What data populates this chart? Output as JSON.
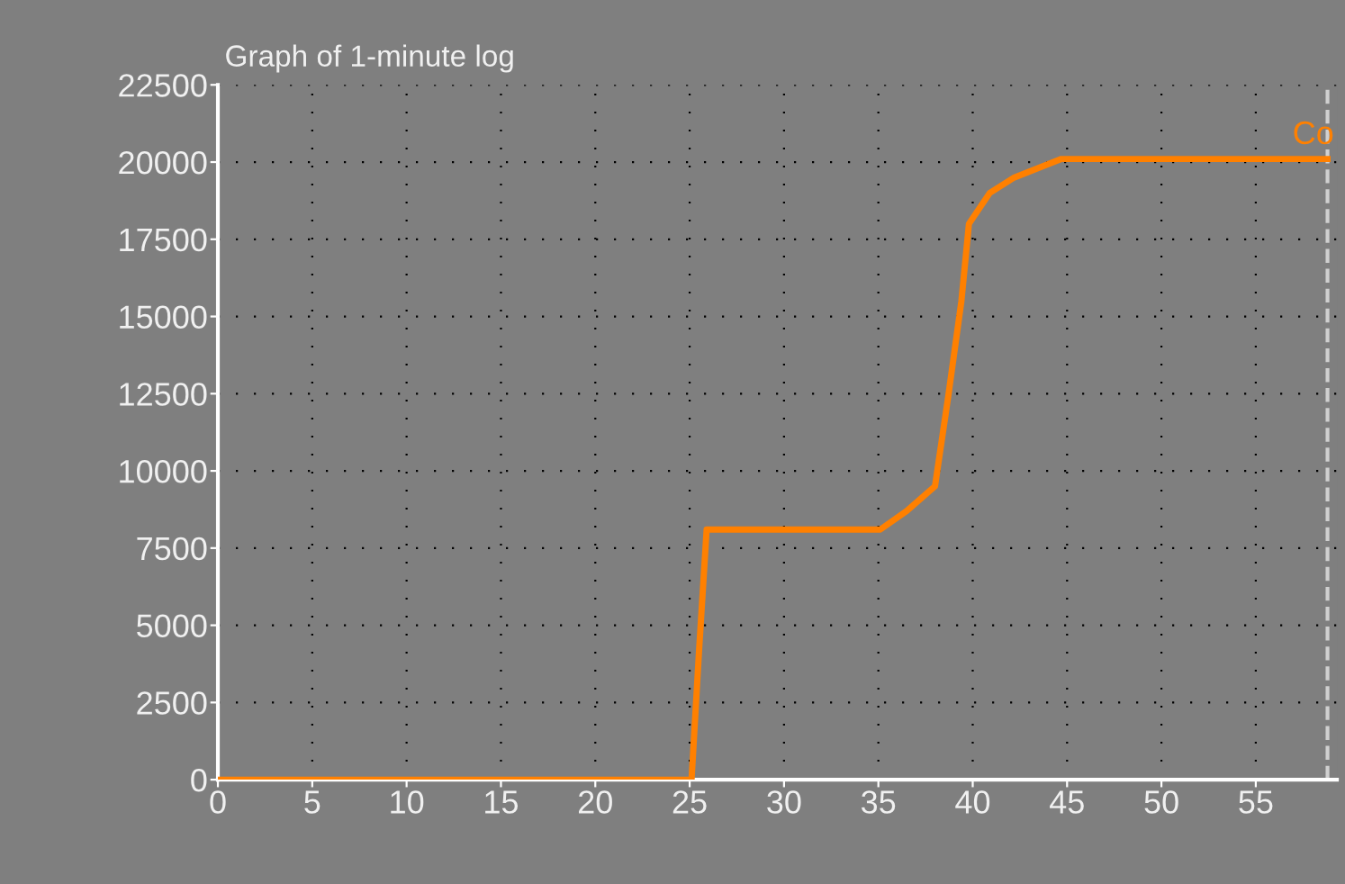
{
  "chart_data": {
    "type": "line",
    "title": "Graph of 1-minute log",
    "x": [
      0,
      25.1,
      25.5,
      25.9,
      35.1,
      36.5,
      38.0,
      38.7,
      39.4,
      39.8,
      40.9,
      42.2,
      44.7,
      58.8
    ],
    "series": [
      {
        "color": "#ff8000",
        "values": [
          0,
          0,
          4200,
          8100,
          8100,
          8700,
          9500,
          12400,
          15500,
          18000,
          19000,
          19500,
          20100,
          20100
        ]
      }
    ],
    "xlim": [
      0,
      59.3
    ],
    "ylim": [
      0,
      22500
    ],
    "xticks": [
      0,
      5,
      10,
      15,
      20,
      25,
      30,
      35,
      40,
      45,
      50,
      55
    ],
    "yticks": [
      0,
      2500,
      5000,
      7500,
      10000,
      12500,
      15000,
      17500,
      20000,
      22500
    ],
    "grid": true,
    "marker": "none",
    "line_style": "solid",
    "ref_lines": [
      {
        "axis": "x",
        "value": 58.8,
        "color": "#d0d0d0",
        "line_style": "dashed"
      }
    ],
    "annotations": [
      {
        "text": "Co",
        "x": 58.8,
        "y": 20100
      }
    ]
  }
}
